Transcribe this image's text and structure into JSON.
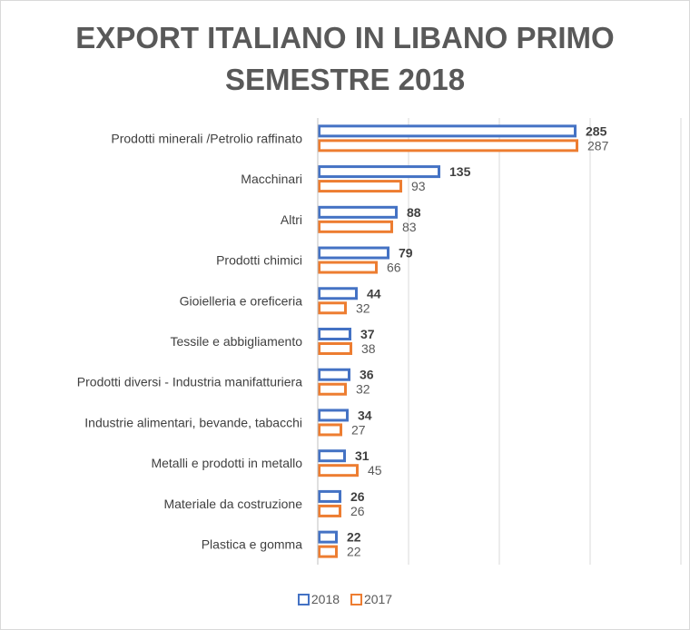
{
  "chart_data": {
    "type": "bar",
    "orientation": "horizontal",
    "title_lines": [
      "EXPORT ITALIANO IN LIBANO PRIMO",
      "SEMESTRE  2018"
    ],
    "categories": [
      "Prodotti minerali /Petrolio raffinato",
      "Macchinari",
      "Altri",
      "Prodotti chimici",
      "Gioielleria e oreficeria",
      "Tessile e abbigliamento",
      "Prodotti diversi - Industria manifatturiera",
      "Industrie alimentari, bevande, tabacchi",
      "Metalli e prodotti in metallo",
      "Materiale da costruzione",
      "Plastica e gomma"
    ],
    "series": [
      {
        "name": "2018",
        "color": "#4472c4",
        "values": [
          285,
          135,
          88,
          79,
          44,
          37,
          36,
          34,
          31,
          26,
          22
        ]
      },
      {
        "name": "2017",
        "color": "#ed7d31",
        "values": [
          287,
          93,
          83,
          66,
          32,
          38,
          32,
          27,
          45,
          26,
          22
        ]
      }
    ],
    "xlim": [
      0,
      400
    ],
    "gridlines": "vertical",
    "legend": "bottom-center"
  }
}
